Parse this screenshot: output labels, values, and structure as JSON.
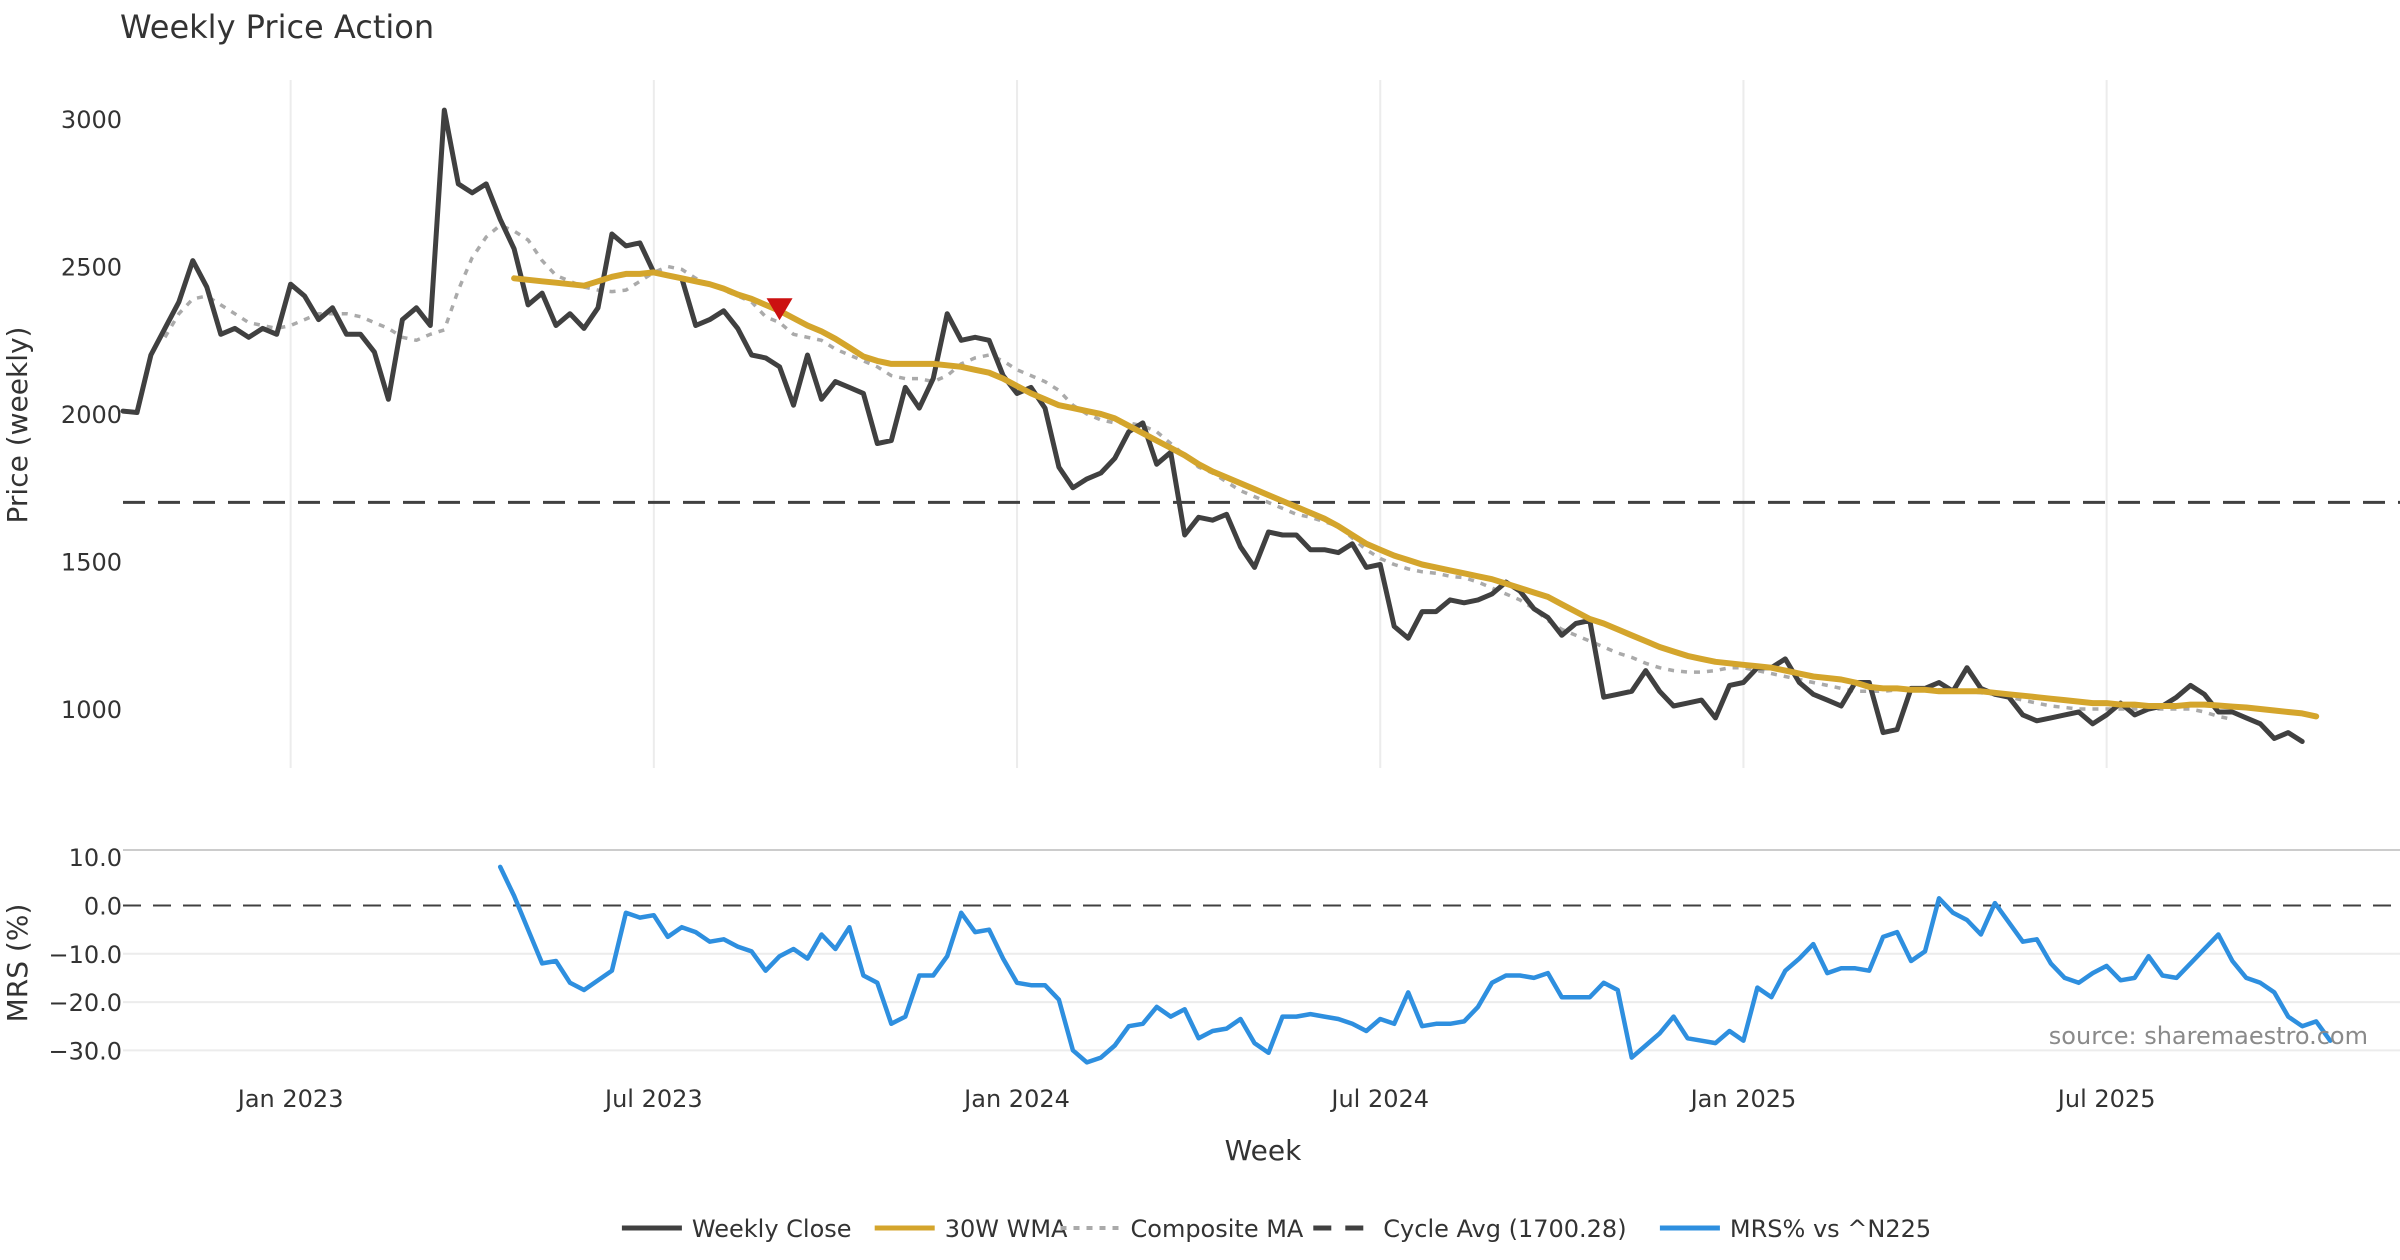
{
  "chart_data": {
    "type": "line",
    "title": "Weekly Price Action",
    "xlabel": "Week",
    "x_ticks": [
      {
        "label": "Jan 2023",
        "week": 12
      },
      {
        "label": "Jul 2023",
        "week": 38
      },
      {
        "label": "Jan 2024",
        "week": 64
      },
      {
        "label": "Jul 2024",
        "week": 90
      },
      {
        "label": "Jan 2025",
        "week": 116
      },
      {
        "label": "Jul 2025",
        "week": 142
      }
    ],
    "week_range": [
      0,
      163
    ],
    "price_panel": {
      "ylabel": "Price (weekly)",
      "ylim": [
        800,
        3200
      ],
      "yticks": [
        "1000",
        "1500",
        "2000",
        "2500",
        "3000"
      ],
      "grid": "vertical",
      "series": [
        {
          "name": "Weekly Close",
          "color": "#404040",
          "style": "solid",
          "start_week": 0,
          "values": [
            2010,
            2005,
            2200,
            2290,
            2380,
            2520,
            2430,
            2270,
            2290,
            2260,
            2290,
            2270,
            2440,
            2400,
            2320,
            2360,
            2270,
            2270,
            2210,
            2050,
            2320,
            2360,
            2300,
            3030,
            2780,
            2750,
            2780,
            2660,
            2560,
            2370,
            2410,
            2300,
            2340,
            2290,
            2360,
            2610,
            2570,
            2580,
            2480,
            2470,
            2460,
            2300,
            2320,
            2350,
            2290,
            2200,
            2190,
            2160,
            2030,
            2200,
            2050,
            2110,
            2090,
            2070,
            1900,
            1910,
            2090,
            2020,
            2120,
            2340,
            2250,
            2260,
            2250,
            2130,
            2070,
            2090,
            2020,
            1820,
            1750,
            1780,
            1800,
            1850,
            1940,
            1970,
            1830,
            1870,
            1590,
            1650,
            1640,
            1660,
            1550,
            1480,
            1600,
            1590,
            1590,
            1540,
            1540,
            1530,
            1560,
            1480,
            1490,
            1280,
            1240,
            1330,
            1330,
            1370,
            1360,
            1370,
            1390,
            1430,
            1400,
            1340,
            1310,
            1250,
            1290,
            1300,
            1040,
            1050,
            1060,
            1130,
            1060,
            1010,
            1020,
            1030,
            970,
            1080,
            1090,
            1140,
            1140,
            1170,
            1090,
            1050,
            1030,
            1010,
            1090,
            1090,
            920,
            930,
            1070,
            1070,
            1090,
            1060,
            1140,
            1070,
            1050,
            1040,
            980,
            960,
            970,
            980,
            990,
            950,
            980,
            1020,
            980,
            1000,
            1010,
            1040,
            1080,
            1050,
            990,
            990,
            970,
            950,
            900,
            920,
            890
          ]
        },
        {
          "name": "30W WMA",
          "color": "#d4a52c",
          "style": "solid",
          "start_week": 28,
          "values": [
            2460,
            2455,
            2450,
            2445,
            2440,
            2435,
            2450,
            2465,
            2475,
            2475,
            2480,
            2470,
            2460,
            2450,
            2440,
            2425,
            2405,
            2390,
            2370,
            2350,
            2325,
            2300,
            2280,
            2255,
            2225,
            2195,
            2180,
            2170,
            2170,
            2170,
            2170,
            2165,
            2160,
            2150,
            2140,
            2120,
            2095,
            2070,
            2050,
            2030,
            2020,
            2010,
            2000,
            1985,
            1960,
            1935,
            1910,
            1885,
            1860,
            1830,
            1805,
            1785,
            1765,
            1745,
            1725,
            1705,
            1685,
            1665,
            1645,
            1620,
            1590,
            1560,
            1540,
            1520,
            1505,
            1490,
            1480,
            1470,
            1460,
            1450,
            1440,
            1425,
            1410,
            1395,
            1380,
            1355,
            1330,
            1305,
            1290,
            1270,
            1250,
            1230,
            1210,
            1195,
            1180,
            1170,
            1160,
            1155,
            1150,
            1145,
            1140,
            1130,
            1120,
            1110,
            1105,
            1100,
            1090,
            1075,
            1070,
            1070,
            1065,
            1065,
            1060,
            1060,
            1060,
            1060,
            1055,
            1050,
            1045,
            1040,
            1035,
            1030,
            1025,
            1020,
            1020,
            1015,
            1015,
            1010,
            1010,
            1010,
            1015,
            1015,
            1012,
            1008,
            1005,
            1000,
            995,
            990,
            985,
            975
          ]
        },
        {
          "name": "Composite MA",
          "color": "#aaaaaa",
          "style": "dotted",
          "start_week": 3,
          "values": [
            2260,
            2340,
            2390,
            2400,
            2370,
            2340,
            2310,
            2300,
            2290,
            2300,
            2320,
            2340,
            2340,
            2340,
            2330,
            2310,
            2290,
            2260,
            2250,
            2270,
            2285,
            2420,
            2530,
            2600,
            2640,
            2620,
            2590,
            2520,
            2470,
            2450,
            2430,
            2420,
            2415,
            2420,
            2450,
            2480,
            2500,
            2490,
            2460,
            2440,
            2420,
            2400,
            2380,
            2330,
            2310,
            2270,
            2260,
            2250,
            2220,
            2200,
            2180,
            2160,
            2130,
            2120,
            2120,
            2110,
            2130,
            2170,
            2190,
            2200,
            2180,
            2150,
            2130,
            2110,
            2080,
            2030,
            2000,
            1980,
            1970,
            1970,
            1960,
            1940,
            1900,
            1860,
            1820,
            1800,
            1770,
            1740,
            1720,
            1700,
            1680,
            1660,
            1650,
            1635,
            1620,
            1580,
            1540,
            1510,
            1490,
            1475,
            1465,
            1460,
            1450,
            1445,
            1430,
            1410,
            1390,
            1370,
            1340,
            1300,
            1270,
            1250,
            1230,
            1210,
            1190,
            1175,
            1155,
            1140,
            1130,
            1125,
            1125,
            1130,
            1140,
            1140,
            1130,
            1120,
            1110,
            1100,
            1090,
            1080,
            1070,
            1060,
            1060,
            1060,
            1065,
            1065,
            1065,
            1065,
            1065,
            1060,
            1055,
            1050,
            1040,
            1030,
            1020,
            1010,
            1005,
            1000,
            1000,
            1000,
            1000,
            1000,
            1000,
            1000,
            1000,
            1000,
            990,
            975,
            965
          ]
        }
      ],
      "reference_line": {
        "name": "Cycle Avg (1700.28)",
        "value": 1700.28,
        "color": "#404040",
        "style": "dashed"
      },
      "markers": [
        {
          "type": "sell-triangle",
          "week": 47,
          "value": 2355,
          "color": "#cc1111"
        }
      ]
    },
    "mrs_panel": {
      "ylabel": "MRS (%)",
      "ylim": [
        -32,
        11.5
      ],
      "yticks": [
        "10.0",
        "0.0",
        "−10.0",
        "−20.0",
        "−30.0"
      ],
      "zero_line": {
        "value": 0,
        "style": "dashed",
        "color": "#404040"
      },
      "series": [
        {
          "name": "MRS% vs ^N225",
          "color": "#2e8fdf",
          "style": "solid",
          "start_week": 27,
          "values": [
            8,
            2,
            -5,
            -12,
            -11.5,
            -16,
            -17.5,
            -15.5,
            -13.5,
            -1.5,
            -2.5,
            -2,
            -6.5,
            -4.5,
            -5.5,
            -7.5,
            -7,
            -8.5,
            -9.5,
            -13.5,
            -10.5,
            -9,
            -11,
            -6,
            -9,
            -4.5,
            -14.5,
            -16,
            -24.5,
            -23,
            -14.5,
            -14.5,
            -10.5,
            -1.5,
            -5.5,
            -5,
            -11,
            -16,
            -16.5,
            -16.5,
            -19.5,
            -30,
            -32.5,
            -31.5,
            -29,
            -25,
            -24.5,
            -21,
            -23,
            -21.5,
            -27.5,
            -26,
            -25.5,
            -23.5,
            -28.5,
            -30.5,
            -23,
            -23,
            -22.5,
            -23,
            -23.5,
            -24.5,
            -26,
            -23.5,
            -24.5,
            -18,
            -25,
            -24.5,
            -24.5,
            -24,
            -21,
            -16,
            -14.5,
            -14.5,
            -15,
            -14,
            -19,
            -19,
            -19,
            -16,
            -17.5,
            -31.5,
            -29,
            -26.5,
            -23,
            -27.5,
            -28,
            -28.5,
            -26,
            -28,
            -17,
            -19,
            -13.5,
            -11,
            -8,
            -14,
            -13,
            -13,
            -13.5,
            -6.5,
            -5.5,
            -11.5,
            -9.5,
            1.5,
            -1.5,
            -3,
            -6,
            0.5,
            -3.5,
            -7.5,
            -7,
            -12,
            -15,
            -16,
            -14,
            -12.5,
            -15.5,
            -15,
            -10.5,
            -14.5,
            -15,
            -12,
            -9,
            -6,
            -11.5,
            -15,
            -16,
            -18,
            -23,
            -25,
            -24,
            -28
          ]
        }
      ]
    },
    "legend": {
      "placement": "bottom-center",
      "entries": [
        {
          "label": "Weekly Close",
          "color": "#404040",
          "style": "solid"
        },
        {
          "label": "30W WMA",
          "color": "#d4a52c",
          "style": "solid"
        },
        {
          "label": "Composite MA",
          "color": "#aaaaaa",
          "style": "dotted"
        },
        {
          "label": "Cycle Avg (1700.28)",
          "color": "#404040",
          "style": "dashed"
        },
        {
          "label": "MRS% vs ^N225",
          "color": "#2e8fdf",
          "style": "solid"
        }
      ]
    },
    "source": "source: sharemaestro.com"
  }
}
